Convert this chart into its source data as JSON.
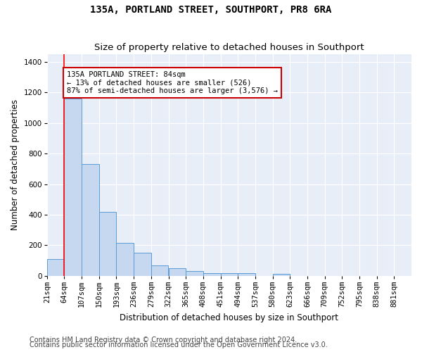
{
  "title": "135A, PORTLAND STREET, SOUTHPORT, PR8 6RA",
  "subtitle": "Size of property relative to detached houses in Southport",
  "xlabel": "Distribution of detached houses by size in Southport",
  "ylabel": "Number of detached properties",
  "categories": [
    "21sqm",
    "64sqm",
    "107sqm",
    "150sqm",
    "193sqm",
    "236sqm",
    "279sqm",
    "322sqm",
    "365sqm",
    "408sqm",
    "451sqm",
    "494sqm",
    "537sqm",
    "580sqm",
    "623sqm",
    "666sqm",
    "709sqm",
    "752sqm",
    "795sqm",
    "838sqm",
    "881sqm"
  ],
  "bar_heights": [
    108,
    1160,
    730,
    420,
    215,
    150,
    70,
    48,
    30,
    18,
    15,
    15,
    0,
    12,
    0,
    0,
    0,
    0,
    0,
    0
  ],
  "bar_color": "#c5d8f0",
  "bar_edge_color": "#5b9bd5",
  "annotation_text": "135A PORTLAND STREET: 84sqm\n← 13% of detached houses are smaller (526)\n87% of semi-detached houses are larger (3,576) →",
  "annotation_box_color": "#ffffff",
  "annotation_box_edge_color": "#cc0000",
  "ylim": [
    0,
    1450
  ],
  "yticks": [
    0,
    200,
    400,
    600,
    800,
    1000,
    1200,
    1400
  ],
  "footer_line1": "Contains HM Land Registry data © Crown copyright and database right 2024.",
  "footer_line2": "Contains public sector information licensed under the Open Government Licence v3.0.",
  "bg_color": "#e8eef8",
  "title_fontsize": 10,
  "subtitle_fontsize": 9.5,
  "axis_label_fontsize": 8.5,
  "tick_fontsize": 7.5,
  "footer_fontsize": 7
}
